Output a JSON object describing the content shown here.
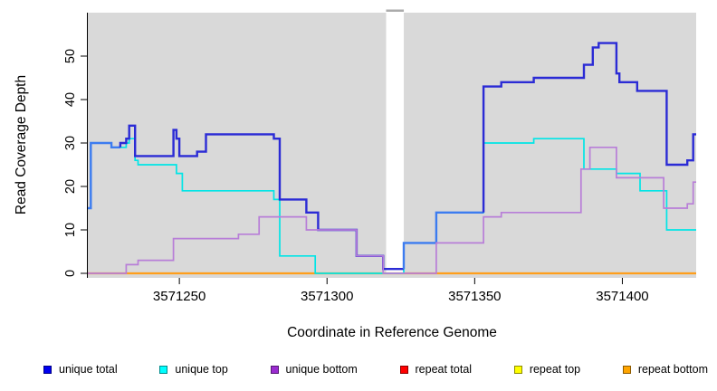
{
  "chart_data": {
    "type": "line",
    "subtype": "step",
    "title": "",
    "xlabel": "Coordinate in Reference Genome",
    "ylabel": "Read Coverage Depth",
    "xlim": [
      3571219,
      3571425
    ],
    "ylim": [
      0,
      60
    ],
    "xticks": [
      3571250,
      3571300,
      3571350,
      3571400
    ],
    "yticks": [
      0,
      10,
      20,
      30,
      40,
      50
    ],
    "grid": "off",
    "panel_bg": "#d9d9d9",
    "gap_region": [
      3571320,
      3571326
    ],
    "legend_position": "bottom",
    "overlap_highlight": {
      "series": "unique total",
      "with": "unique top",
      "color": "#3c7cf0"
    },
    "draw_order": [
      "repeat total",
      "repeat top",
      "repeat bottom",
      "unique top",
      "unique total",
      "unique bottom"
    ],
    "series": [
      {
        "name": "unique total",
        "color": "#2b2bd5",
        "swatch": "#0000f0",
        "points": [
          [
            3571219,
            15
          ],
          [
            3571220,
            30
          ],
          [
            3571227,
            29
          ],
          [
            3571230,
            30
          ],
          [
            3571232,
            31
          ],
          [
            3571233,
            34
          ],
          [
            3571235,
            27
          ],
          [
            3571248,
            33
          ],
          [
            3571249,
            31
          ],
          [
            3571250,
            27
          ],
          [
            3571256,
            28
          ],
          [
            3571259,
            32
          ],
          [
            3571282,
            31
          ],
          [
            3571284,
            17
          ],
          [
            3571293,
            14
          ],
          [
            3571297,
            10
          ],
          [
            3571310,
            4
          ],
          [
            3571319,
            1
          ],
          [
            3571326,
            7
          ],
          [
            3571337,
            14
          ],
          [
            3571353,
            43
          ],
          [
            3571359,
            44
          ],
          [
            3571370,
            45
          ],
          [
            3571387,
            48
          ],
          [
            3571390,
            52
          ],
          [
            3571392,
            53
          ],
          [
            3571398,
            46
          ],
          [
            3571399,
            44
          ],
          [
            3571405,
            42
          ],
          [
            3571415,
            25
          ],
          [
            3571422,
            26
          ],
          [
            3571424,
            32
          ]
        ]
      },
      {
        "name": "unique top",
        "color": "#00e5e6",
        "swatch": "#00ffff",
        "points": [
          [
            3571219,
            15
          ],
          [
            3571220,
            30
          ],
          [
            3571227,
            29
          ],
          [
            3571232,
            30
          ],
          [
            3571233,
            31
          ],
          [
            3571235,
            26
          ],
          [
            3571236,
            25
          ],
          [
            3571249,
            23
          ],
          [
            3571251,
            19
          ],
          [
            3571282,
            17
          ],
          [
            3571284,
            4
          ],
          [
            3571296,
            0
          ],
          [
            3571326,
            7
          ],
          [
            3571337,
            14
          ],
          [
            3571353,
            30
          ],
          [
            3571370,
            31
          ],
          [
            3571387,
            24
          ],
          [
            3571398,
            23
          ],
          [
            3571406,
            19
          ],
          [
            3571415,
            10
          ]
        ]
      },
      {
        "name": "unique bottom",
        "color": "#b87ed8",
        "swatch": "#9a2bd0",
        "points": [
          [
            3571219,
            0
          ],
          [
            3571232,
            2
          ],
          [
            3571236,
            3
          ],
          [
            3571248,
            8
          ],
          [
            3571270,
            9
          ],
          [
            3571277,
            13
          ],
          [
            3571293,
            10
          ],
          [
            3571310,
            4
          ],
          [
            3571319,
            0
          ],
          [
            3571337,
            7
          ],
          [
            3571353,
            13
          ],
          [
            3571359,
            14
          ],
          [
            3571386,
            24
          ],
          [
            3571389,
            29
          ],
          [
            3571398,
            22
          ],
          [
            3571414,
            15
          ],
          [
            3571422,
            16
          ],
          [
            3571424,
            21
          ]
        ]
      },
      {
        "name": "repeat total",
        "color": "#e60000",
        "swatch": "#ff0000",
        "points": [
          [
            3571219,
            0
          ]
        ]
      },
      {
        "name": "repeat top",
        "color": "#e6e600",
        "swatch": "#ffff00",
        "points": [
          [
            3571219,
            0
          ]
        ]
      },
      {
        "name": "repeat bottom",
        "color": "#ff9e1b",
        "swatch": "#ffa500",
        "points": [
          [
            3571219,
            0
          ]
        ]
      }
    ]
  }
}
